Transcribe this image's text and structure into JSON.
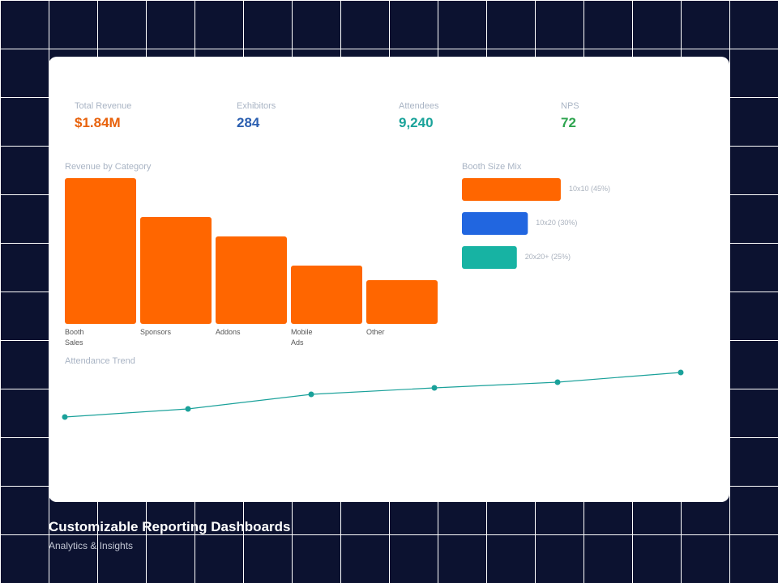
{
  "kpis": [
    {
      "label": "Total Revenue",
      "value": "$1.84M",
      "color": "#e8620c"
    },
    {
      "label": "Exhibitors",
      "value": "284",
      "color": "#2b5fb0"
    },
    {
      "label": "Attendees",
      "value": "9,240",
      "color": "#1aa39a"
    },
    {
      "label": "NPS",
      "value": "72",
      "color": "#2ea44f"
    }
  ],
  "revenue_chart": {
    "type": "bar",
    "title": "Revenue by Category",
    "categories": [
      "Booth Sales",
      "Sponsors",
      "Addons",
      "Mobile Ads",
      "Other"
    ],
    "values": [
      180,
      132,
      108,
      72,
      54
    ],
    "color": "#ff6600"
  },
  "booth_chart": {
    "type": "hbar",
    "title": "Booth Size Mix",
    "labels": [
      "10x10 (45%)",
      "10x20 (30%)",
      "20x20+ (25%)"
    ],
    "values": [
      45,
      30,
      25
    ],
    "colors": [
      "#ff6600",
      "#2166e0",
      "#17b3a3"
    ]
  },
  "trend_chart": {
    "type": "line",
    "title": "Attendance Trend",
    "values": [
      85,
      95,
      113,
      121,
      128,
      140
    ],
    "color": "#1aa19a"
  },
  "footer": {
    "title": "Customizable Reporting Dashboards",
    "subtitle": "Analytics & Insights"
  }
}
